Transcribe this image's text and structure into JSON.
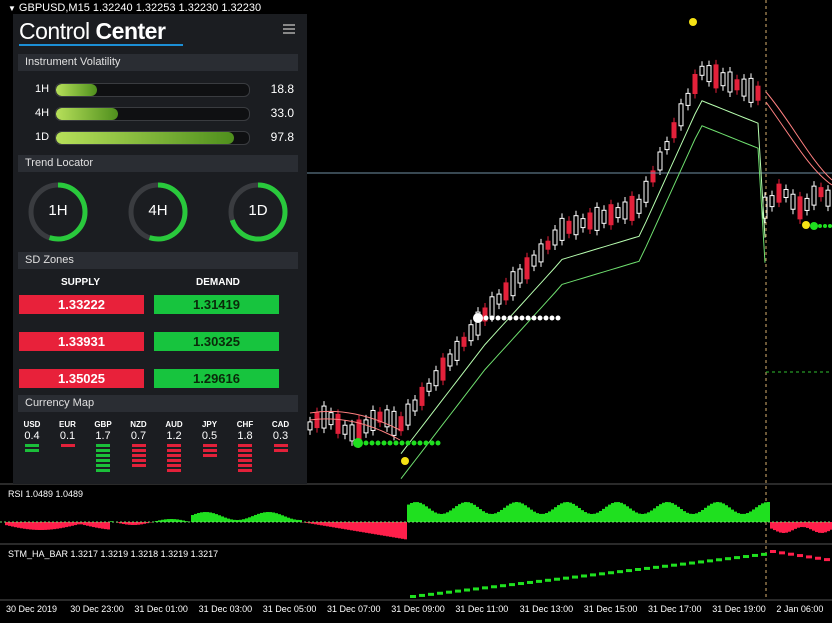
{
  "window": {
    "title": "GBPUSD,M15  1.32240 1.32253 1.32230 1.32230"
  },
  "panel": {
    "title_light": "Control",
    "title_bold": "Center",
    "volatility": {
      "header": "Instrument Volatility",
      "rows": [
        {
          "label": "1H",
          "value": "18.8",
          "fill": 0.21
        },
        {
          "label": "4H",
          "value": "33.0",
          "fill": 0.32
        },
        {
          "label": "1D",
          "value": "97.8",
          "fill": 0.92
        }
      ]
    },
    "trend": {
      "header": "Trend Locator",
      "gauges": [
        {
          "label": "1H",
          "fill": 0.55,
          "color": "#29c93c"
        },
        {
          "label": "4H",
          "fill": 0.55,
          "color": "#29c93c"
        },
        {
          "label": "1D",
          "fill": 0.7,
          "color": "#29c93c"
        }
      ]
    },
    "sd": {
      "header": "SD Zones",
      "supply_label": "SUPPLY",
      "demand_label": "DEMAND",
      "supply": [
        "1.33222",
        "1.33931",
        "1.35025"
      ],
      "demand": [
        "1.31419",
        "1.30325",
        "1.29616"
      ]
    },
    "currency": {
      "header": "Currency Map",
      "items": [
        {
          "name": "USD",
          "value": "0.4",
          "bars": 2,
          "color": "#1bbf3a"
        },
        {
          "name": "EUR",
          "value": "0.1",
          "bars": 1,
          "color": "#e3213a"
        },
        {
          "name": "GBP",
          "value": "1.7",
          "bars": 6,
          "color": "#1bbf3a"
        },
        {
          "name": "NZD",
          "value": "0.7",
          "bars": 5,
          "color": "#e3213a"
        },
        {
          "name": "AUD",
          "value": "1.2",
          "bars": 6,
          "color": "#e3213a"
        },
        {
          "name": "JPY",
          "value": "0.5",
          "bars": 3,
          "color": "#e3213a"
        },
        {
          "name": "CHF",
          "value": "1.8",
          "bars": 6,
          "color": "#e3213a"
        },
        {
          "name": "CAD",
          "value": "0.3",
          "bars": 2,
          "color": "#e3213a"
        }
      ]
    }
  },
  "indicators": {
    "rsi_label": "RSI 1.0489 1.0489",
    "stm_label": "STM_HA_BAR 1.3217 1.3219 1.3218 1.3219 1.3217"
  },
  "time_axis": [
    "30 Dec 2019",
    "30 Dec 23:00",
    "31 Dec 01:00",
    "31 Dec 03:00",
    "31 Dec 05:00",
    "31 Dec 07:00",
    "31 Dec 09:00",
    "31 Dec 11:00",
    "31 Dec 13:00",
    "31 Dec 15:00",
    "31 Dec 17:00",
    "31 Dec 19:00",
    "2 Jan 06:00"
  ],
  "colors": {
    "bull": "#ffffff",
    "bear": "#e3213a",
    "green": "#1fe01f",
    "red": "#ff1f4b",
    "accent": "#1c8fd6"
  }
}
